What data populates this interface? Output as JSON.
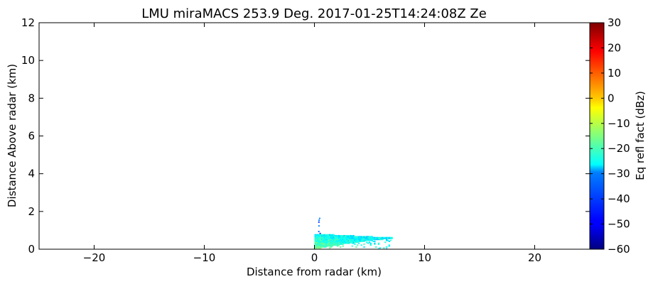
{
  "chart_data": {
    "type": "heatmap",
    "title": "LMU miraMACS 253.9 Deg. 2017-01-25T14:24:08Z  Ze",
    "xlabel": "Distance from radar (km)",
    "ylabel": "Distance Above radar  (km)",
    "xlim": [
      -25,
      25
    ],
    "ylim": [
      0,
      12
    ],
    "x_ticks": [
      -20,
      -10,
      0,
      10,
      20
    ],
    "y_ticks": [
      0,
      2,
      4,
      6,
      8,
      10,
      12
    ],
    "x_tick_labels": [
      "−20",
      "−10",
      "0",
      "10",
      "20"
    ],
    "y_tick_labels": [
      "0",
      "2",
      "4",
      "6",
      "8",
      "10",
      "12"
    ],
    "grid": false,
    "colorbar": {
      "label": "Eq refl fact (dBz)",
      "min": -60,
      "max": 30,
      "ticks": [
        30,
        20,
        10,
        0,
        -10,
        -20,
        -30,
        -40,
        -50,
        -60
      ],
      "tick_labels": [
        "30",
        "20",
        "10",
        "0",
        "−10",
        "−20",
        "−30",
        "−40",
        "−50",
        "−60"
      ],
      "colormap": "jet"
    },
    "echo": {
      "description_values": {
        "near_ground_layer": {
          "x_range_km": [
            0,
            7
          ],
          "top_height_km_at_x0": 0.8,
          "top_height_km_at_x7": 0.6
        },
        "spike": {
          "x_km": 0.4,
          "height_range_km": [
            0.8,
            1.65
          ]
        }
      },
      "dominant_dBz_range": [
        -30,
        -15
      ]
    }
  }
}
